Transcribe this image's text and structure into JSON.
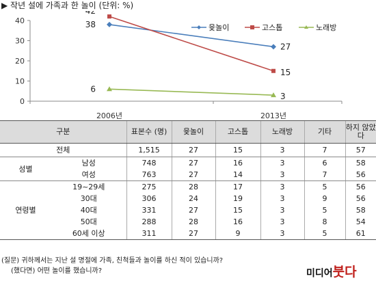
{
  "header": {
    "title": "▶ 작년 설에 가족과 한 놀이 (단위: %)"
  },
  "chart_data": {
    "type": "line",
    "x": [
      "2006년",
      "2013년"
    ],
    "ylim": [
      0,
      40
    ],
    "yticks": [
      0,
      10,
      20,
      30,
      40
    ],
    "series": [
      {
        "name": "윷놀이",
        "values": [
          38,
          27
        ],
        "color": "#4a7ebb",
        "marker": "diamond"
      },
      {
        "name": "고스톱",
        "values": [
          42,
          15
        ],
        "color": "#be4b48",
        "marker": "square"
      },
      {
        "name": "노래방",
        "values": [
          6,
          3
        ],
        "color": "#98b954",
        "marker": "triangle"
      }
    ],
    "legend": "top-right",
    "grid": false
  },
  "table": {
    "headers": [
      "구분",
      "표본수 (명)",
      "윷놀이",
      "고스톱",
      "노래방",
      "기타",
      "하지 않았다"
    ],
    "total": {
      "label": "전체",
      "values": [
        "1,515",
        "27",
        "15",
        "3",
        "7",
        "57"
      ]
    },
    "gender": {
      "label": "성별",
      "rows": [
        {
          "label": "남성",
          "values": [
            "748",
            "27",
            "16",
            "3",
            "6",
            "58"
          ]
        },
        {
          "label": "여성",
          "values": [
            "763",
            "27",
            "14",
            "3",
            "7",
            "56"
          ]
        }
      ]
    },
    "age": {
      "label": "연령별",
      "rows": [
        {
          "label": "19~29세",
          "values": [
            "275",
            "28",
            "17",
            "3",
            "5",
            "56"
          ]
        },
        {
          "label": "30대",
          "values": [
            "306",
            "24",
            "19",
            "3",
            "9",
            "56"
          ]
        },
        {
          "label": "40대",
          "values": [
            "331",
            "27",
            "15",
            "3",
            "5",
            "58"
          ]
        },
        {
          "label": "50대",
          "values": [
            "288",
            "28",
            "16",
            "3",
            "8",
            "54"
          ]
        },
        {
          "label": "60세 이상",
          "values": [
            "311",
            "27",
            "9",
            "3",
            "5",
            "61"
          ]
        }
      ]
    }
  },
  "footnote": {
    "line1": "(질문) 귀하께서는 지난 설 명절에 가족, 친척들과 놀이를 하신 적이 있습니까?",
    "line2": "(했다면) 어떤 놀이를 했습니까?"
  },
  "watermark": {
    "text": "미디어붓다"
  }
}
